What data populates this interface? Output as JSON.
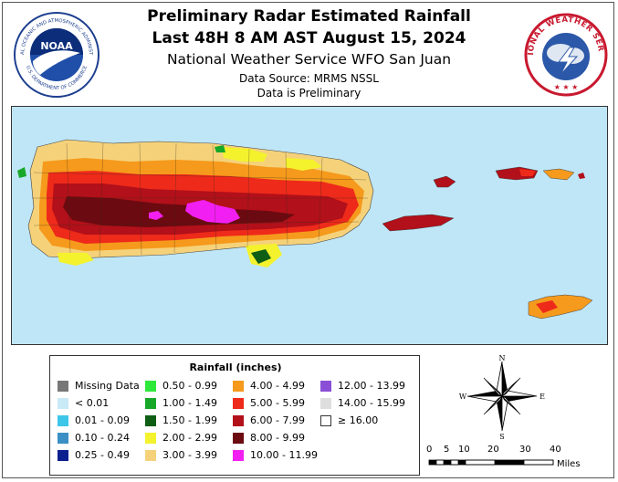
{
  "header": {
    "title_line1": "Preliminary Radar Estimated Rainfall",
    "title_line2": "Last 48H 8 AM AST August 15, 2024",
    "office": "National Weather Service WFO San Juan",
    "data_source": "Data Source: MRMS NSSL",
    "note": "Data is Preliminary"
  },
  "logos": {
    "noaa_text": "NOAA",
    "noaa_ring_top": "NATIONAL OCEANIC AND ATMOSPHERIC ADMINISTRATION",
    "noaa_ring_bottom": "U.S. DEPARTMENT OF COMMERCE",
    "nws_ring_text": "NATIONAL WEATHER SERVICE"
  },
  "legend": {
    "title": "Rainfall (inches)",
    "items": [
      {
        "label": "Missing Data",
        "color": "#777777"
      },
      {
        "label": "< 0.01",
        "color": "#c9e9f6"
      },
      {
        "label": "0.01 - 0.09",
        "color": "#3ec6e8"
      },
      {
        "label": "0.10 - 0.24",
        "color": "#3a8fc4"
      },
      {
        "label": "0.25 - 0.49",
        "color": "#0c1f8f"
      },
      {
        "label": "0.50 - 0.99",
        "color": "#2ee83a"
      },
      {
        "label": "1.00 - 1.49",
        "color": "#17a82a"
      },
      {
        "label": "1.50 - 1.99",
        "color": "#0e5e16"
      },
      {
        "label": "2.00 - 2.99",
        "color": "#f4f22c"
      },
      {
        "label": "3.00 - 3.99",
        "color": "#f5d27a"
      },
      {
        "label": "4.00 - 4.99",
        "color": "#f59a1c"
      },
      {
        "label": "5.00 - 5.99",
        "color": "#ee2a1a"
      },
      {
        "label": "6.00 - 7.99",
        "color": "#b2101a"
      },
      {
        "label": "8.00 - 9.99",
        "color": "#6b0a10"
      },
      {
        "label": "10.00 - 11.99",
        "color": "#f21ff2"
      },
      {
        "label": "12.00 - 13.99",
        "color": "#8a4fd6"
      },
      {
        "label": "14.00 - 15.99",
        "color": "#dedede"
      },
      {
        "label": "≥ 16.00",
        "color": "#ffffff"
      }
    ]
  },
  "compass": {
    "n": "N",
    "s": "S",
    "e": "E",
    "w": "W"
  },
  "scale": {
    "ticks": [
      "0",
      "5",
      "10",
      "20",
      "30",
      "40"
    ],
    "unit": "Miles"
  },
  "map_colors": {
    "water": "#bfe6f7",
    "land_low": "#f5d27a",
    "land_mid": "#f59a1c",
    "land_high": "#ee2a1a",
    "land_higher": "#b2101a",
    "land_peak": "#6b0a10",
    "land_max": "#f21ff2",
    "green": "#17a82a",
    "yellow": "#f4f22c"
  }
}
